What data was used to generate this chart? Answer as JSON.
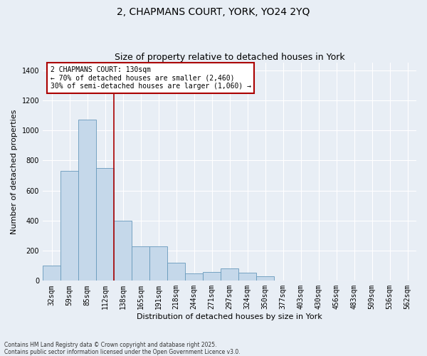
{
  "title": "2, CHAPMANS COURT, YORK, YO24 2YQ",
  "subtitle": "Size of property relative to detached houses in York",
  "xlabel": "Distribution of detached houses by size in York",
  "ylabel": "Number of detached properties",
  "categories": [
    "32sqm",
    "59sqm",
    "85sqm",
    "112sqm",
    "138sqm",
    "165sqm",
    "191sqm",
    "218sqm",
    "244sqm",
    "271sqm",
    "297sqm",
    "324sqm",
    "350sqm",
    "377sqm",
    "403sqm",
    "430sqm",
    "456sqm",
    "483sqm",
    "509sqm",
    "536sqm",
    "562sqm"
  ],
  "values": [
    100,
    730,
    1070,
    750,
    400,
    230,
    230,
    120,
    50,
    60,
    80,
    55,
    30,
    0,
    0,
    0,
    0,
    0,
    0,
    0,
    0
  ],
  "bar_color": "#c5d8ea",
  "bar_edge_color": "#6699bb",
  "red_line_x": 3.5,
  "ylim": [
    0,
    1450
  ],
  "yticks": [
    0,
    200,
    400,
    600,
    800,
    1000,
    1200,
    1400
  ],
  "annotation_text": "2 CHAPMANS COURT: 130sqm\n← 70% of detached houses are smaller (2,460)\n30% of semi-detached houses are larger (1,060) →",
  "annotation_box_facecolor": "#ffffff",
  "annotation_box_edgecolor": "#aa0000",
  "footer_line1": "Contains HM Land Registry data © Crown copyright and database right 2025.",
  "footer_line2": "Contains public sector information licensed under the Open Government Licence v3.0.",
  "background_color": "#e8eef5",
  "plot_bg_color": "#e8eef5",
  "grid_color": "#ffffff",
  "title_fontsize": 10,
  "subtitle_fontsize": 9,
  "tick_fontsize": 7,
  "label_fontsize": 8,
  "annotation_fontsize": 7,
  "footer_fontsize": 5.5
}
